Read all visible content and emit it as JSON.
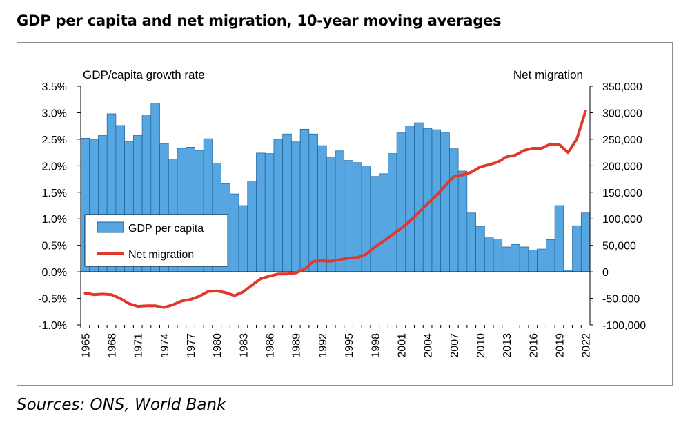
{
  "title": "GDP per capita and net migration, 10-year moving averages",
  "sources": "Sources: ONS, World Bank",
  "colors": {
    "bar_fill": "#56a6e2",
    "bar_stroke": "#1d5f96",
    "line": "#e0382a",
    "axis": "#000000"
  },
  "chart_data": {
    "type": "bar",
    "x": [
      1965,
      1966,
      1967,
      1968,
      1969,
      1970,
      1971,
      1972,
      1973,
      1974,
      1975,
      1976,
      1977,
      1978,
      1979,
      1980,
      1981,
      1982,
      1983,
      1984,
      1985,
      1986,
      1987,
      1988,
      1989,
      1990,
      1991,
      1992,
      1993,
      1994,
      1995,
      1996,
      1997,
      1998,
      1999,
      2000,
      2001,
      2002,
      2003,
      2004,
      2005,
      2006,
      2007,
      2008,
      2009,
      2010,
      2011,
      2012,
      2013,
      2014,
      2015,
      2016,
      2017,
      2018,
      2019,
      2020,
      2021,
      2022
    ],
    "x_tick_labels": [
      "1965",
      "1968",
      "1971",
      "1974",
      "1977",
      "1980",
      "1983",
      "1986",
      "1989",
      "1992",
      "1995",
      "1998",
      "2001",
      "2004",
      "2007",
      "2010",
      "2013",
      "2016",
      "2019",
      "2022"
    ],
    "series": [
      {
        "name": "GDP per capita",
        "type": "bar",
        "axis": "left",
        "values": [
          2.52,
          2.5,
          2.57,
          2.98,
          2.76,
          2.46,
          2.57,
          2.96,
          3.18,
          2.42,
          2.13,
          2.33,
          2.35,
          2.29,
          2.51,
          2.05,
          1.66,
          1.47,
          1.25,
          1.71,
          2.24,
          2.23,
          2.5,
          2.6,
          2.45,
          2.69,
          2.6,
          2.38,
          2.17,
          2.28,
          2.1,
          2.06,
          2.0,
          1.8,
          1.85,
          2.23,
          2.62,
          2.75,
          2.81,
          2.7,
          2.68,
          2.62,
          2.32,
          1.9,
          1.11,
          0.86,
          0.66,
          0.62,
          0.47,
          0.52,
          0.47,
          0.41,
          0.43,
          0.61,
          1.25,
          0.03,
          0.87,
          1.11
        ]
      },
      {
        "name": "Net migration",
        "type": "line",
        "axis": "right",
        "values": [
          -40000,
          -43000,
          -42000,
          -43000,
          -50000,
          -60000,
          -65000,
          -64000,
          -64000,
          -67000,
          -62000,
          -55000,
          -52000,
          -46000,
          -37000,
          -36000,
          -39000,
          -45000,
          -38000,
          -25000,
          -13000,
          -8000,
          -4000,
          -4000,
          -2000,
          5000,
          20000,
          21000,
          20000,
          23000,
          26000,
          27000,
          33000,
          47000,
          58000,
          70000,
          82000,
          96000,
          112000,
          128000,
          144000,
          162000,
          180000,
          183000,
          188000,
          198000,
          202000,
          207000,
          217000,
          220000,
          229000,
          233000,
          233000,
          241000,
          240000,
          225000,
          250000,
          303000
        ]
      }
    ],
    "y_left": {
      "label": "GDP/capita growth rate",
      "ticks": [
        "3.5%",
        "3.0%",
        "2.5%",
        "2.0%",
        "1.5%",
        "1.0%",
        "0.5%",
        "0.0%",
        "-0.5%",
        "-1.0%"
      ],
      "range": [
        -1.0,
        3.5
      ]
    },
    "y_right": {
      "label": "Net migration",
      "ticks": [
        "350,000",
        "300,000",
        "250,000",
        "200,000",
        "150,000",
        "100,000",
        "50,000",
        "0",
        "-50,000",
        "-100,000"
      ],
      "range": [
        -100000,
        350000
      ]
    },
    "legend": {
      "position": "left-middle",
      "entries": [
        "GDP per capita",
        "Net migration"
      ]
    },
    "grid": false
  }
}
